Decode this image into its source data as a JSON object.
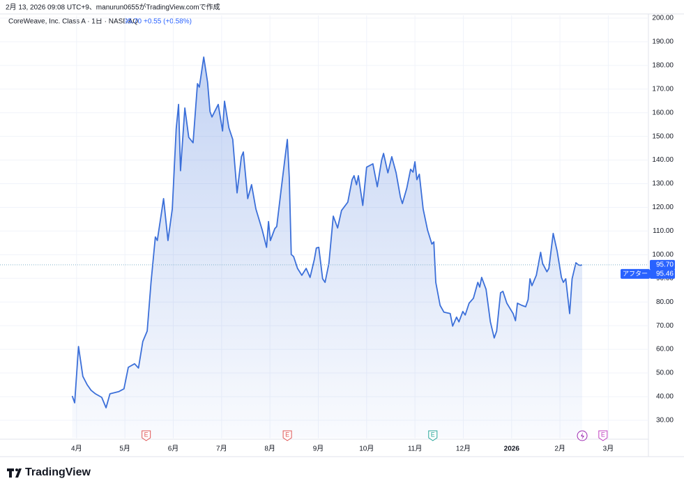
{
  "header": {
    "caption": "2月 13, 2026 09:08 UTC+9、manurun0655がTradingView.comで作成",
    "symbol": "CoreWeave, Inc. Class A · 1日 · NASDAQ",
    "last": "95.70",
    "change": "+0.55 (+0.58%)",
    "brand": "TradingView"
  },
  "chart_data": {
    "type": "area",
    "color": "#3b6fd9",
    "grid": true,
    "series": [
      {
        "name": "CoreWeave, Inc. Class A",
        "color": "#3b6fd9",
        "x": [
          -0.09,
          -0.04,
          0.04,
          0.13,
          0.22,
          0.3,
          0.39,
          0.52,
          0.61,
          0.69,
          0.87,
          0.98,
          1.07,
          1.2,
          1.28,
          1.37,
          1.46,
          1.54,
          1.63,
          1.67,
          1.8,
          1.89,
          1.98,
          2.06,
          2.11,
          2.15,
          2.24,
          2.32,
          2.41,
          2.5,
          2.54,
          2.63,
          2.71,
          2.76,
          2.8,
          2.93,
          3.02,
          3.06,
          3.15,
          3.23,
          3.32,
          3.41,
          3.45,
          3.54,
          3.62,
          3.71,
          3.84,
          3.93,
          3.97,
          4.01,
          4.1,
          4.14,
          4.23,
          4.31,
          4.36,
          4.4,
          4.44,
          4.49,
          4.57,
          4.66,
          4.75,
          4.83,
          4.92,
          4.96,
          5.01,
          5.09,
          5.14,
          5.22,
          5.31,
          5.4,
          5.48,
          5.61,
          5.7,
          5.74,
          5.79,
          5.83,
          5.92,
          6.0,
          6.13,
          6.22,
          6.31,
          6.35,
          6.44,
          6.52,
          6.61,
          6.7,
          6.74,
          6.83,
          6.91,
          6.96,
          7.0,
          7.04,
          7.09,
          7.17,
          7.26,
          7.35,
          7.39,
          7.43,
          7.52,
          7.6,
          7.73,
          7.78,
          7.86,
          7.91,
          7.99,
          8.04,
          8.12,
          8.21,
          8.3,
          8.34,
          8.38,
          8.47,
          8.56,
          8.64,
          8.69,
          8.77,
          8.82,
          8.9,
          9.03,
          9.08,
          9.12,
          9.21,
          9.29,
          9.34,
          9.38,
          9.42,
          9.51,
          9.6,
          9.64,
          9.73,
          9.77,
          9.86,
          9.94,
          10.03,
          10.07,
          10.12,
          10.2,
          10.25,
          10.33,
          10.38,
          10.42,
          10.46
        ],
        "values": [
          40.3,
          37.4,
          61.2,
          48.6,
          45.0,
          42.7,
          41.2,
          39.7,
          35.3,
          41.2,
          42.1,
          43.3,
          52.4,
          53.9,
          52.1,
          63.3,
          67.7,
          88.3,
          107.5,
          106.0,
          123.7,
          106.0,
          119.3,
          153.2,
          163.5,
          135.5,
          162.0,
          149.6,
          147.3,
          172.3,
          170.8,
          183.5,
          172.9,
          160.5,
          158.2,
          163.5,
          152.3,
          164.9,
          153.7,
          148.7,
          126.1,
          141.4,
          143.4,
          123.7,
          129.6,
          119.3,
          110.4,
          103.1,
          114.0,
          106.0,
          111.0,
          111.9,
          127.2,
          140.5,
          148.7,
          132.5,
          100.1,
          99.2,
          94.2,
          91.3,
          94.2,
          90.4,
          98.1,
          102.8,
          103.1,
          89.8,
          88.3,
          96.3,
          116.3,
          111.3,
          118.7,
          122.2,
          131.7,
          133.4,
          129.6,
          133.4,
          120.8,
          137.0,
          138.4,
          128.7,
          139.9,
          142.8,
          134.6,
          141.4,
          134.6,
          124.3,
          121.6,
          128.1,
          136.1,
          134.9,
          139.3,
          131.7,
          134.0,
          119.3,
          110.4,
          104.5,
          105.4,
          88.3,
          78.6,
          75.7,
          75.1,
          69.8,
          73.6,
          71.6,
          76.0,
          74.5,
          79.5,
          81.6,
          88.3,
          86.3,
          90.4,
          85.4,
          71.6,
          64.8,
          67.7,
          83.9,
          84.5,
          79.5,
          75.1,
          72.1,
          79.5,
          78.6,
          78.0,
          81.0,
          89.8,
          86.9,
          91.3,
          101.0,
          96.3,
          92.8,
          94.2,
          109.0,
          101.6,
          90.4,
          88.3,
          89.8,
          75.1,
          89.8,
          96.6,
          95.7,
          95.5,
          95.7
        ]
      }
    ],
    "xlim": [
      -1.44,
      11.83
    ],
    "xticks": [
      {
        "value": 0,
        "label": "4月"
      },
      {
        "value": 1,
        "label": "5月"
      },
      {
        "value": 2,
        "label": "6月"
      },
      {
        "value": 3,
        "label": "7月"
      },
      {
        "value": 4,
        "label": "8月"
      },
      {
        "value": 5,
        "label": "9月"
      },
      {
        "value": 6,
        "label": "10月"
      },
      {
        "value": 7,
        "label": "11月"
      },
      {
        "value": 8,
        "label": "12月"
      },
      {
        "value": 9,
        "label": "2026"
      },
      {
        "value": 10,
        "label": "2月"
      },
      {
        "value": 11,
        "label": "3月"
      }
    ],
    "ylim": [
      22.6,
      204.7
    ],
    "yticks": [
      {
        "value": 30,
        "label": "30.00"
      },
      {
        "value": 40,
        "label": "40.00"
      },
      {
        "value": 50,
        "label": "50.00"
      },
      {
        "value": 60,
        "label": "60.00"
      },
      {
        "value": 70,
        "label": "70.00"
      },
      {
        "value": 80,
        "label": "80.00"
      },
      {
        "value": 90,
        "label": "90.00"
      },
      {
        "value": 100,
        "label": "100.00"
      },
      {
        "value": 110,
        "label": "110.00"
      },
      {
        "value": 120,
        "label": "120.00"
      },
      {
        "value": 130,
        "label": "130.00"
      },
      {
        "value": 140,
        "label": "140.00"
      },
      {
        "value": 150,
        "label": "150.00"
      },
      {
        "value": 160,
        "label": "160.00"
      },
      {
        "value": 170,
        "label": "170.00"
      },
      {
        "value": 180,
        "label": "180.00"
      },
      {
        "value": 190,
        "label": "190.00"
      },
      {
        "value": 200,
        "label": "200.00"
      }
    ],
    "price_line": {
      "value": 95.7,
      "label": "95.70"
    },
    "after_hours": {
      "name": "アフター",
      "value": 95.46,
      "label": "95.46"
    },
    "events": [
      {
        "x": 1.44,
        "label": "E"
      },
      {
        "x": 4.36,
        "label": "E"
      },
      {
        "x": 7.37,
        "label": "E"
      },
      {
        "x": 10.89,
        "label": "E"
      }
    ]
  }
}
